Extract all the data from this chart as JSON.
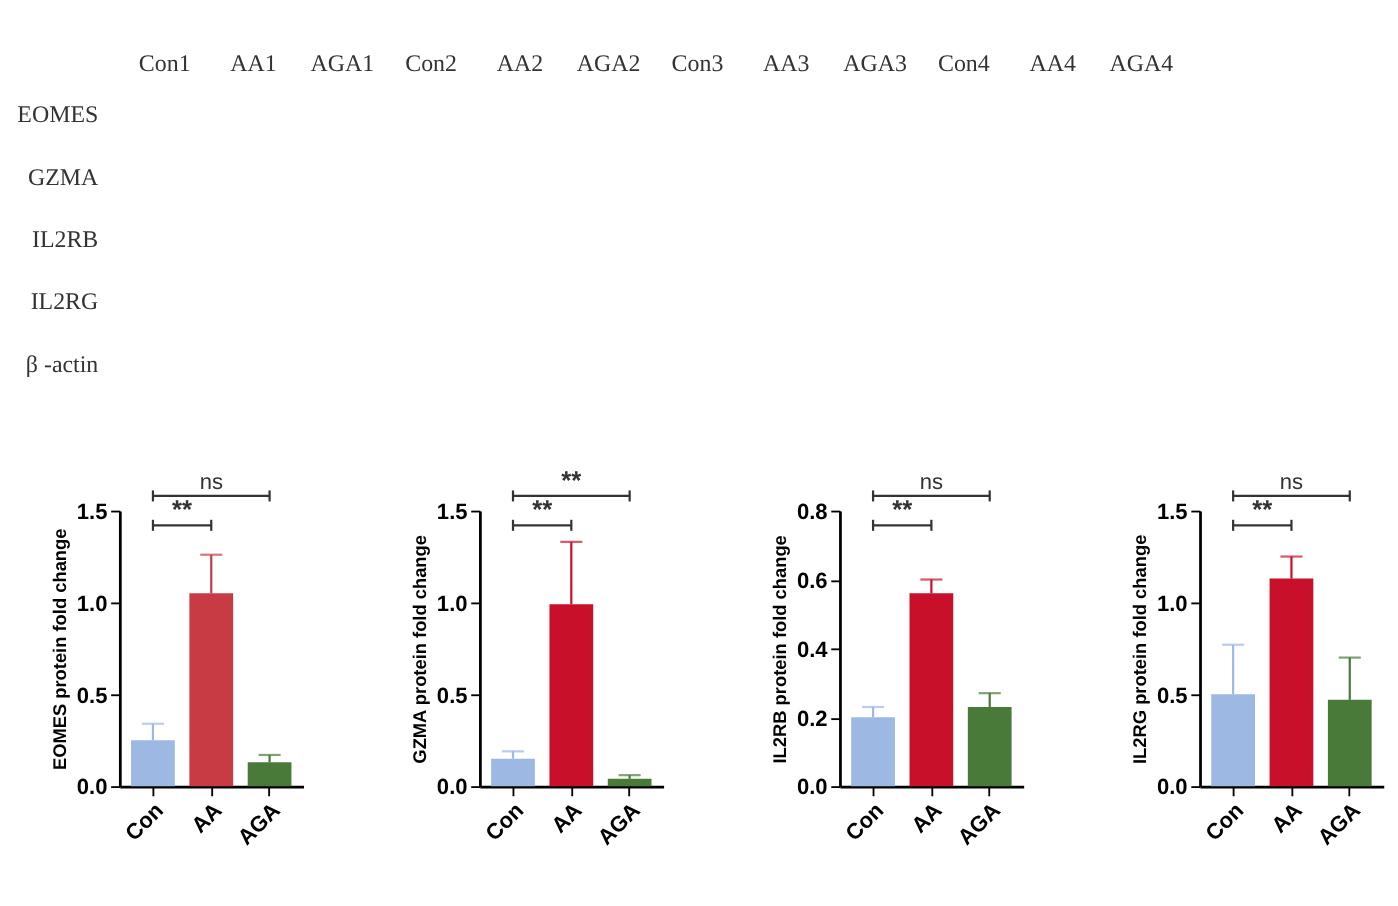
{
  "chart_data": [
    {
      "type": "other",
      "categories": [
        "Con1",
        "AA1",
        "AGA1",
        "Con2",
        "AA2",
        "AGA2",
        "Con3",
        "AA3",
        "AGA3",
        "Con4",
        "AA4",
        "AGA4"
      ],
      "y_categories": [
        "EOMES",
        "GZMA",
        "IL2RB",
        "IL2RG",
        "β -actin"
      ]
    },
    {
      "type": "bar",
      "ylabel": "EOMES protein fold change",
      "categories": [
        "Con",
        "AA",
        "AGA"
      ],
      "values": [
        0.25,
        1.05,
        0.13
      ],
      "errors": [
        0.09,
        0.21,
        0.04
      ],
      "colors": [
        "#9db8e3",
        "#c83a44",
        "#4a7a3a"
      ],
      "ylim": [
        0,
        1.5
      ],
      "yticks": [
        {
          "value": 0,
          "label": "0.0"
        },
        {
          "value": 0.5,
          "label": "0.5"
        },
        {
          "value": 1,
          "label": "1.0"
        },
        {
          "value": 1.5,
          "label": "1.5"
        }
      ],
      "annotations": [
        "ns",
        "**"
      ]
    },
    {
      "type": "bar",
      "ylabel": "GZMA protein fold change",
      "categories": [
        "Con",
        "AA",
        "AGA"
      ],
      "values": [
        0.15,
        0.99,
        0.04
      ],
      "errors": [
        0.04,
        0.34,
        0.02
      ],
      "colors": [
        "#9db8e3",
        "#c8102a",
        "#4a7a3a"
      ],
      "ylim": [
        0,
        1.5
      ],
      "yticks": [
        {
          "value": 0,
          "label": "0.0"
        },
        {
          "value": 0.5,
          "label": "0.5"
        },
        {
          "value": 1,
          "label": "1.0"
        },
        {
          "value": 1.5,
          "label": "1.5"
        }
      ],
      "annotations": [
        "**",
        "**"
      ]
    },
    {
      "type": "bar",
      "ylabel": "IL2RB protein fold change",
      "categories": [
        "Con",
        "AA",
        "AGA"
      ],
      "values": [
        0.2,
        0.56,
        0.23
      ],
      "errors": [
        0.03,
        0.04,
        0.04
      ],
      "colors": [
        "#9db8e3",
        "#c8102a",
        "#4a7a3a"
      ],
      "ylim": [
        0,
        0.8
      ],
      "yticks": [
        {
          "value": 0,
          "label": "0.0"
        },
        {
          "value": 0.2,
          "label": "0.2"
        },
        {
          "value": 0.4,
          "label": "0.4"
        },
        {
          "value": 0.6,
          "label": "0.6"
        },
        {
          "value": 0.8,
          "label": "0.8"
        }
      ],
      "annotations": [
        "ns",
        "**"
      ]
    },
    {
      "type": "bar",
      "ylabel": "IL2RG protein fold change",
      "categories": [
        "Con",
        "AA",
        "AGA"
      ],
      "values": [
        0.5,
        1.13,
        0.47
      ],
      "errors": [
        0.27,
        0.12,
        0.23
      ],
      "colors": [
        "#9db8e3",
        "#c8102a",
        "#4a7a3a"
      ],
      "ylim": [
        0,
        1.5
      ],
      "yticks": [
        {
          "value": 0,
          "label": "0.0"
        },
        {
          "value": 0.5,
          "label": "0.5"
        },
        {
          "value": 1,
          "label": "1.0"
        },
        {
          "value": 1.5,
          "label": "1.5"
        }
      ],
      "annotations": [
        "ns",
        "**"
      ]
    }
  ]
}
